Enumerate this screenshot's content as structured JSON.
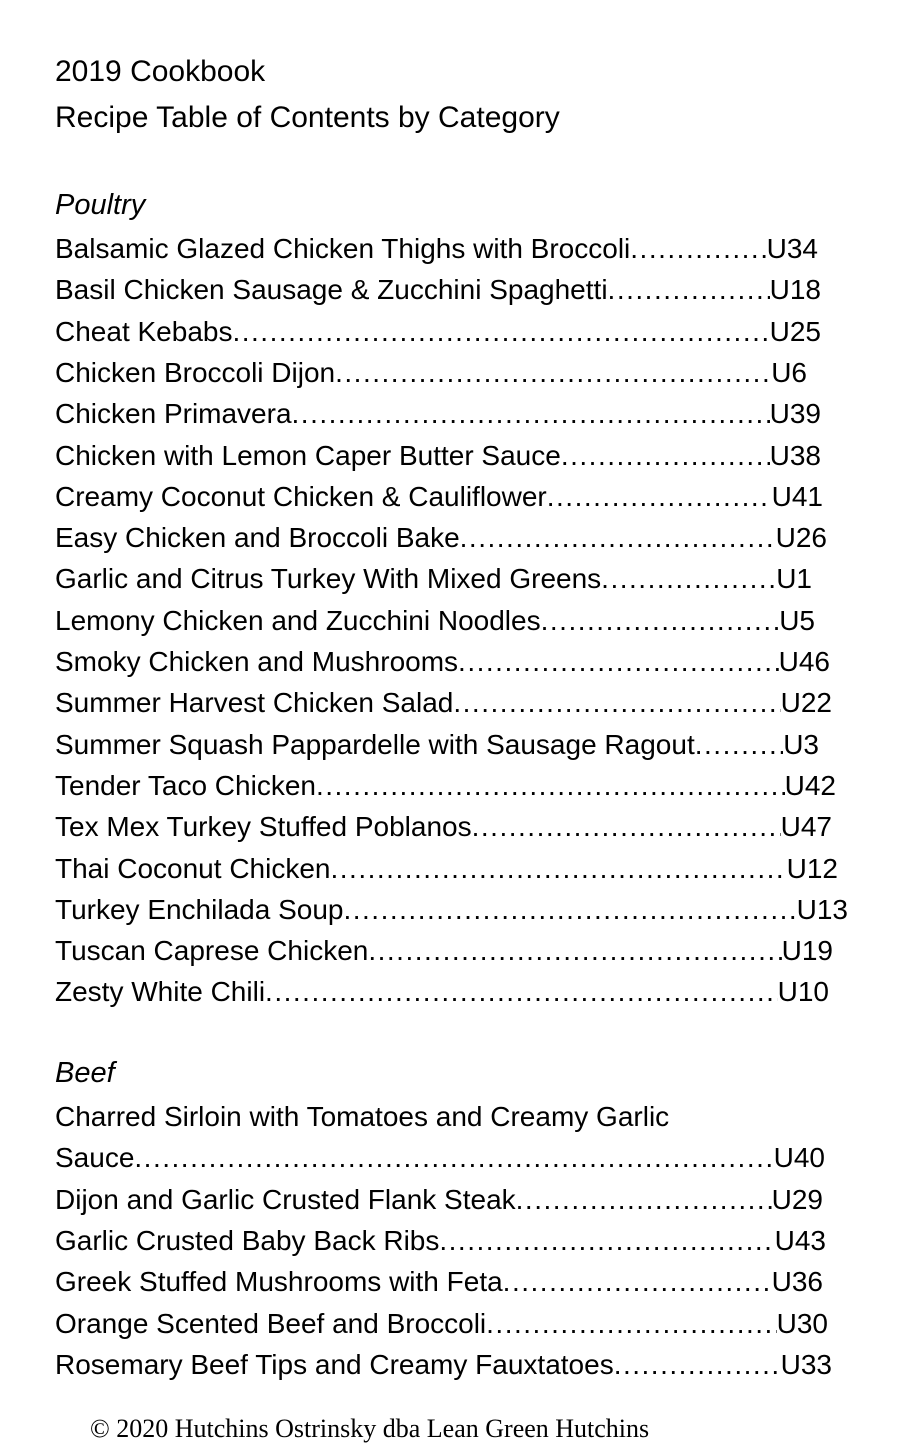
{
  "header": {
    "title": "2019 Cookbook",
    "subtitle": "Recipe Table of Contents by Category"
  },
  "sections": [
    {
      "name": "Poultry",
      "entries": [
        {
          "title": "Balsamic Glazed Chicken Thighs with Broccoli",
          "page": "U34"
        },
        {
          "title": "Basil Chicken Sausage & Zucchini Spaghetti",
          "page": "U18"
        },
        {
          "title": "Cheat Kebabs",
          "page": "U25"
        },
        {
          "title": "Chicken Broccoli Dijon",
          "page": "U6"
        },
        {
          "title": "Chicken Primavera",
          "page": "U39"
        },
        {
          "title": "Chicken with Lemon Caper Butter Sauce",
          "page": "U38"
        },
        {
          "title": "Creamy Coconut Chicken & Cauliflower",
          "page": "U41"
        },
        {
          "title": "Easy Chicken and Broccoli Bake",
          "page": "U26"
        },
        {
          "title": "Garlic and Citrus Turkey With Mixed Greens",
          "page": "U1"
        },
        {
          "title": "Lemony Chicken and Zucchini Noodles",
          "page": "U5"
        },
        {
          "title": "Smoky Chicken and Mushrooms",
          "page": "U46"
        },
        {
          "title": "Summer Harvest Chicken Salad",
          "page": "U22"
        },
        {
          "title": "Summer Squash Pappardelle with Sausage Ragout",
          "page": "U3"
        },
        {
          "title": "Tender Taco Chicken",
          "page": "U42"
        },
        {
          "title": "Tex Mex Turkey Stuffed Poblanos",
          "page": "U47"
        },
        {
          "title": "Thai Coconut Chicken",
          "page": "U12"
        },
        {
          "title": "Turkey Enchilada Soup",
          "page": "U13"
        },
        {
          "title": "Tuscan Caprese Chicken",
          "page": "U19"
        },
        {
          "title": "Zesty White Chili",
          "page": "U10"
        }
      ]
    },
    {
      "name": "Beef",
      "entries": [
        {
          "title": "Charred Sirloin with Tomatoes and Creamy Garlic",
          "title_cont": "Sauce",
          "page": "U40"
        },
        {
          "title": "Dijon and Garlic Crusted Flank Steak",
          "page": "U29"
        },
        {
          "title": "Garlic Crusted Baby Back Ribs",
          "page": "U43"
        },
        {
          "title": "Greek Stuffed Mushrooms with Feta",
          "page": "U36"
        },
        {
          "title": "Orange Scented Beef and Broccoli",
          "page": "U30"
        },
        {
          "title": "Rosemary Beef Tips and Creamy Fauxtatoes",
          "page": "U33"
        }
      ]
    }
  ],
  "footer": "© 2020 Hutchins Ostrinsky dba Lean Green Hutchins"
}
